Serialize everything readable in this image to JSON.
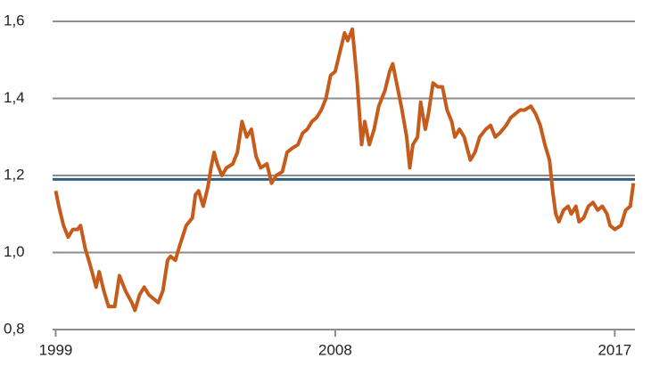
{
  "chart_data": {
    "type": "line",
    "x": [
      1999.0,
      1999.1,
      1999.25,
      1999.4,
      1999.55,
      1999.7,
      1999.8,
      1999.95,
      2000.1,
      2000.3,
      2000.4,
      2000.55,
      2000.7,
      2000.9,
      2001.05,
      2001.25,
      2001.45,
      2001.55,
      2001.7,
      2001.85,
      2002.0,
      2002.15,
      2002.3,
      2002.45,
      2002.6,
      2002.7,
      2002.85,
      2003.0,
      2003.2,
      2003.4,
      2003.5,
      2003.6,
      2003.75,
      2003.9,
      2004.0,
      2004.1,
      2004.2,
      2004.35,
      2004.5,
      2004.7,
      2004.85,
      2005.0,
      2005.15,
      2005.3,
      2005.45,
      2005.6,
      2005.8,
      2005.95,
      2006.1,
      2006.3,
      2006.45,
      2006.6,
      2006.8,
      2006.95,
      2007.1,
      2007.25,
      2007.4,
      2007.55,
      2007.7,
      2007.85,
      2008.0,
      2008.15,
      2008.3,
      2008.4,
      2008.55,
      2008.7,
      2008.85,
      2008.95,
      2009.1,
      2009.25,
      2009.4,
      2009.6,
      2009.75,
      2009.85,
      2010.0,
      2010.15,
      2010.3,
      2010.4,
      2010.5,
      2010.65,
      2010.75,
      2010.9,
      2011.0,
      2011.15,
      2011.3,
      2011.45,
      2011.6,
      2011.75,
      2011.85,
      2012.0,
      2012.15,
      2012.35,
      2012.5,
      2012.65,
      2012.85,
      2013.0,
      2013.15,
      2013.3,
      2013.5,
      2013.65,
      2013.8,
      2013.95,
      2014.1,
      2014.3,
      2014.45,
      2014.6,
      2014.75,
      2014.9,
      2015.0,
      2015.1,
      2015.2,
      2015.35,
      2015.5,
      2015.6,
      2015.75,
      2015.85,
      2016.0,
      2016.15,
      2016.3,
      2016.45,
      2016.6,
      2016.75,
      2016.85,
      2017.0,
      2017.2,
      2017.35,
      2017.5,
      2017.6
    ],
    "series": [
      {
        "color": "#c65c1c",
        "values": [
          1.16,
          1.12,
          1.07,
          1.04,
          1.06,
          1.06,
          1.07,
          1.01,
          0.97,
          0.91,
          0.95,
          0.9,
          0.86,
          0.86,
          0.94,
          0.9,
          0.87,
          0.85,
          0.89,
          0.91,
          0.89,
          0.88,
          0.87,
          0.9,
          0.98,
          0.99,
          0.98,
          1.02,
          1.07,
          1.09,
          1.15,
          1.16,
          1.12,
          1.17,
          1.22,
          1.26,
          1.23,
          1.2,
          1.22,
          1.23,
          1.26,
          1.34,
          1.3,
          1.32,
          1.25,
          1.22,
          1.23,
          1.18,
          1.2,
          1.21,
          1.26,
          1.27,
          1.28,
          1.31,
          1.32,
          1.34,
          1.35,
          1.37,
          1.4,
          1.46,
          1.47,
          1.52,
          1.57,
          1.55,
          1.58,
          1.45,
          1.28,
          1.34,
          1.28,
          1.32,
          1.38,
          1.42,
          1.47,
          1.49,
          1.43,
          1.37,
          1.3,
          1.22,
          1.28,
          1.3,
          1.39,
          1.32,
          1.36,
          1.44,
          1.43,
          1.43,
          1.37,
          1.34,
          1.3,
          1.32,
          1.3,
          1.24,
          1.26,
          1.3,
          1.32,
          1.33,
          1.3,
          1.31,
          1.33,
          1.35,
          1.36,
          1.37,
          1.37,
          1.38,
          1.36,
          1.33,
          1.28,
          1.24,
          1.16,
          1.1,
          1.08,
          1.11,
          1.12,
          1.1,
          1.12,
          1.08,
          1.09,
          1.12,
          1.13,
          1.11,
          1.12,
          1.1,
          1.07,
          1.06,
          1.07,
          1.11,
          1.12,
          1.18
        ]
      }
    ],
    "reference_line": {
      "value": 1.19,
      "color": "#2e5f80"
    },
    "xlim": [
      1998.9,
      2017.65
    ],
    "xticks": [
      1999,
      2008,
      2017
    ],
    "ylim": [
      0.8,
      1.6
    ],
    "yticks": [
      {
        "value": 0.8,
        "label": "0,8"
      },
      {
        "value": 1.0,
        "label": "1,0"
      },
      {
        "value": 1.2,
        "label": "1,2"
      },
      {
        "value": 1.4,
        "label": "1,4"
      },
      {
        "value": 1.6,
        "label": "1,6"
      }
    ],
    "grid": true
  }
}
